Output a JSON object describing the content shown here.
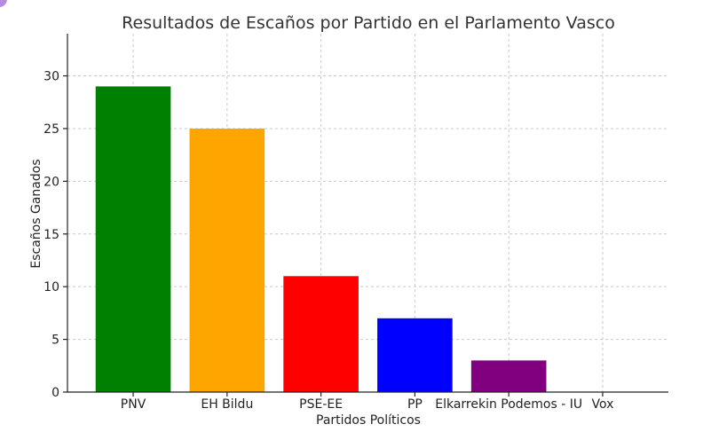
{
  "chart_data": {
    "type": "bar",
    "title": "Resultados de Escaños por Partido en el Parlamento Vasco",
    "xlabel": "Partidos Políticos",
    "ylabel": "Escaños Ganados",
    "categories": [
      "PNV",
      "EH Bildu",
      "PSE-EE",
      "PP",
      "Elkarrekin Podemos - IU",
      "Vox"
    ],
    "values": [
      29,
      25,
      11,
      7,
      3,
      0
    ],
    "colors": [
      "#008000",
      "#ffa500",
      "#ff0000",
      "#0000ff",
      "#800080",
      "#800000"
    ],
    "ylim": [
      0,
      34
    ],
    "yticks": [
      0,
      5,
      10,
      15,
      20,
      25,
      30
    ],
    "grid": true
  }
}
